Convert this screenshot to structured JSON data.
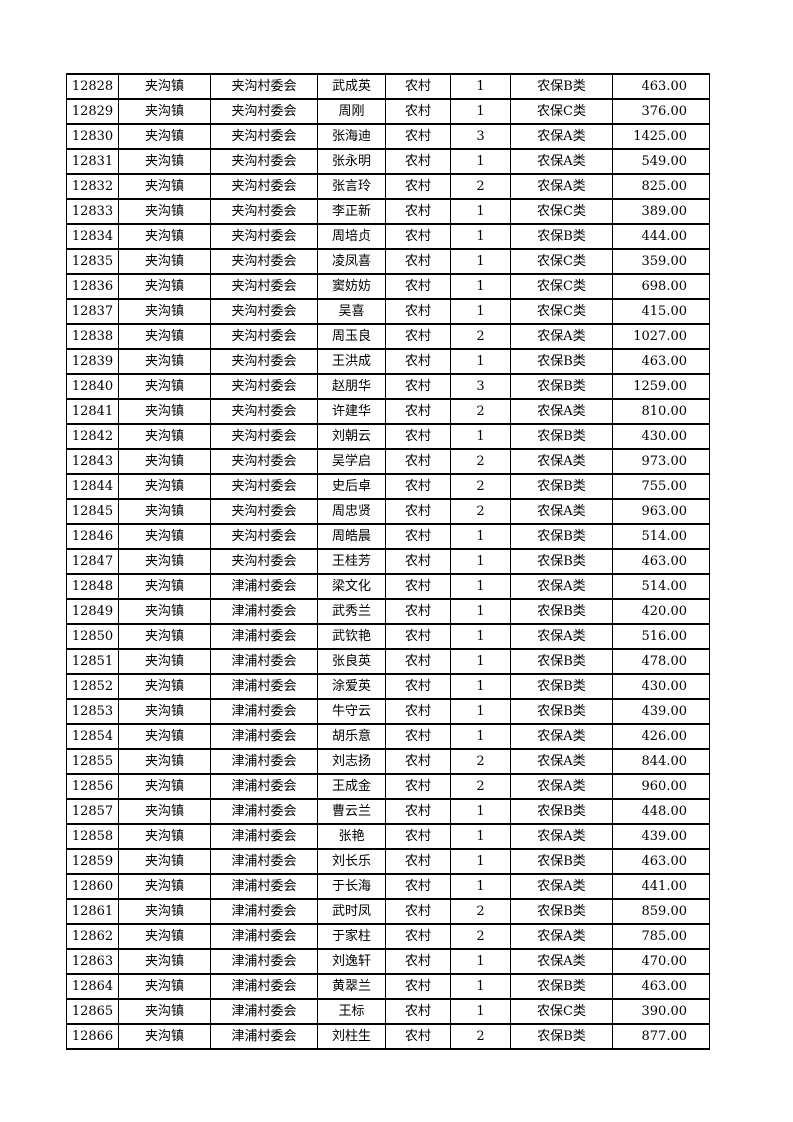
{
  "colors": {
    "background": "#ffffff",
    "text": "#000000",
    "border": "#000000"
  },
  "table": {
    "rows": [
      [
        "12828",
        "夹沟镇",
        "夹沟村委会",
        "武成英",
        "农村",
        "1",
        "农保B类",
        "463.00"
      ],
      [
        "12829",
        "夹沟镇",
        "夹沟村委会",
        "周刚",
        "农村",
        "1",
        "农保C类",
        "376.00"
      ],
      [
        "12830",
        "夹沟镇",
        "夹沟村委会",
        "张海迪",
        "农村",
        "3",
        "农保A类",
        "1425.00"
      ],
      [
        "12831",
        "夹沟镇",
        "夹沟村委会",
        "张永明",
        "农村",
        "1",
        "农保A类",
        "549.00"
      ],
      [
        "12832",
        "夹沟镇",
        "夹沟村委会",
        "张言玲",
        "农村",
        "2",
        "农保A类",
        "825.00"
      ],
      [
        "12833",
        "夹沟镇",
        "夹沟村委会",
        "李正新",
        "农村",
        "1",
        "农保C类",
        "389.00"
      ],
      [
        "12834",
        "夹沟镇",
        "夹沟村委会",
        "周培贞",
        "农村",
        "1",
        "农保B类",
        "444.00"
      ],
      [
        "12835",
        "夹沟镇",
        "夹沟村委会",
        "凌凤喜",
        "农村",
        "1",
        "农保C类",
        "359.00"
      ],
      [
        "12836",
        "夹沟镇",
        "夹沟村委会",
        "窦妨妨",
        "农村",
        "1",
        "农保C类",
        "698.00"
      ],
      [
        "12837",
        "夹沟镇",
        "夹沟村委会",
        "吴喜",
        "农村",
        "1",
        "农保C类",
        "415.00"
      ],
      [
        "12838",
        "夹沟镇",
        "夹沟村委会",
        "周玉良",
        "农村",
        "2",
        "农保A类",
        "1027.00"
      ],
      [
        "12839",
        "夹沟镇",
        "夹沟村委会",
        "王洪成",
        "农村",
        "1",
        "农保B类",
        "463.00"
      ],
      [
        "12840",
        "夹沟镇",
        "夹沟村委会",
        "赵朋华",
        "农村",
        "3",
        "农保B类",
        "1259.00"
      ],
      [
        "12841",
        "夹沟镇",
        "夹沟村委会",
        "许建华",
        "农村",
        "2",
        "农保A类",
        "810.00"
      ],
      [
        "12842",
        "夹沟镇",
        "夹沟村委会",
        "刘朝云",
        "农村",
        "1",
        "农保B类",
        "430.00"
      ],
      [
        "12843",
        "夹沟镇",
        "夹沟村委会",
        "吴学启",
        "农村",
        "2",
        "农保A类",
        "973.00"
      ],
      [
        "12844",
        "夹沟镇",
        "夹沟村委会",
        "史后卓",
        "农村",
        "2",
        "农保B类",
        "755.00"
      ],
      [
        "12845",
        "夹沟镇",
        "夹沟村委会",
        "周忠贤",
        "农村",
        "2",
        "农保A类",
        "963.00"
      ],
      [
        "12846",
        "夹沟镇",
        "夹沟村委会",
        "周皓晨",
        "农村",
        "1",
        "农保B类",
        "514.00"
      ],
      [
        "12847",
        "夹沟镇",
        "夹沟村委会",
        "王桂芳",
        "农村",
        "1",
        "农保B类",
        "463.00"
      ],
      [
        "12848",
        "夹沟镇",
        "津浦村委会",
        "梁文化",
        "农村",
        "1",
        "农保A类",
        "514.00"
      ],
      [
        "12849",
        "夹沟镇",
        "津浦村委会",
        "武秀兰",
        "农村",
        "1",
        "农保B类",
        "420.00"
      ],
      [
        "12850",
        "夹沟镇",
        "津浦村委会",
        "武钦艳",
        "农村",
        "1",
        "农保A类",
        "516.00"
      ],
      [
        "12851",
        "夹沟镇",
        "津浦村委会",
        "张良英",
        "农村",
        "1",
        "农保B类",
        "478.00"
      ],
      [
        "12852",
        "夹沟镇",
        "津浦村委会",
        "涂爱英",
        "农村",
        "1",
        "农保B类",
        "430.00"
      ],
      [
        "12853",
        "夹沟镇",
        "津浦村委会",
        "牛守云",
        "农村",
        "1",
        "农保B类",
        "439.00"
      ],
      [
        "12854",
        "夹沟镇",
        "津浦村委会",
        "胡乐意",
        "农村",
        "1",
        "农保A类",
        "426.00"
      ],
      [
        "12855",
        "夹沟镇",
        "津浦村委会",
        "刘志扬",
        "农村",
        "2",
        "农保A类",
        "844.00"
      ],
      [
        "12856",
        "夹沟镇",
        "津浦村委会",
        "王成金",
        "农村",
        "2",
        "农保A类",
        "960.00"
      ],
      [
        "12857",
        "夹沟镇",
        "津浦村委会",
        "曹云兰",
        "农村",
        "1",
        "农保B类",
        "448.00"
      ],
      [
        "12858",
        "夹沟镇",
        "津浦村委会",
        "张艳",
        "农村",
        "1",
        "农保A类",
        "439.00"
      ],
      [
        "12859",
        "夹沟镇",
        "津浦村委会",
        "刘长乐",
        "农村",
        "1",
        "农保B类",
        "463.00"
      ],
      [
        "12860",
        "夹沟镇",
        "津浦村委会",
        "于长海",
        "农村",
        "1",
        "农保A类",
        "441.00"
      ],
      [
        "12861",
        "夹沟镇",
        "津浦村委会",
        "武时凤",
        "农村",
        "2",
        "农保B类",
        "859.00"
      ],
      [
        "12862",
        "夹沟镇",
        "津浦村委会",
        "于家柱",
        "农村",
        "2",
        "农保A类",
        "785.00"
      ],
      [
        "12863",
        "夹沟镇",
        "津浦村委会",
        "刘逸轩",
        "农村",
        "1",
        "农保A类",
        "470.00"
      ],
      [
        "12864",
        "夹沟镇",
        "津浦村委会",
        "黄翠兰",
        "农村",
        "1",
        "农保B类",
        "463.00"
      ],
      [
        "12865",
        "夹沟镇",
        "津浦村委会",
        "王标",
        "农村",
        "1",
        "农保C类",
        "390.00"
      ],
      [
        "12866",
        "夹沟镇",
        "津浦村委会",
        "刘柱生",
        "农村",
        "2",
        "农保B类",
        "877.00"
      ]
    ]
  }
}
